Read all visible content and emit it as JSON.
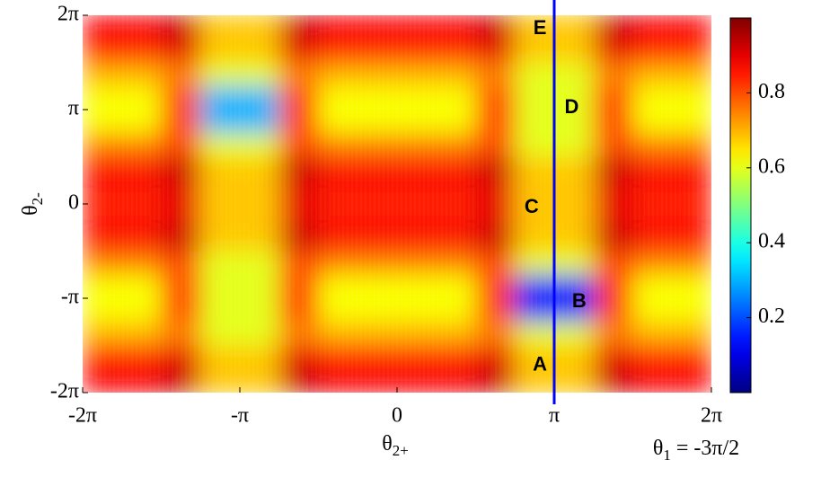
{
  "chart_data": {
    "type": "heatmap",
    "xlim": [
      -6.2832,
      6.2832
    ],
    "ylim": [
      -6.2832,
      6.2832
    ],
    "xticks": [
      {
        "value": -6.2832,
        "label": "-2π"
      },
      {
        "value": -3.1416,
        "label": "-π"
      },
      0,
      {
        "value": 3.1416,
        "label": "π"
      },
      {
        "value": 6.2832,
        "label": "2π"
      }
    ],
    "yticks": [
      {
        "value": -6.2832,
        "label": "-2π"
      },
      {
        "value": -3.1416,
        "label": "-π"
      },
      0,
      {
        "value": 3.1416,
        "label": "π"
      },
      {
        "value": 6.2832,
        "label": "2π"
      }
    ],
    "xlabel": {
      "symbol": "θ",
      "sub": "2+"
    },
    "ylabel": {
      "symbol": "θ",
      "sub": "2-"
    },
    "colormap": "jet",
    "zlim": [
      0,
      1
    ],
    "colorbar_ticks": [
      0.2,
      0.4,
      0.6,
      0.8
    ],
    "z": [
      [
        0.88,
        0.88,
        0.93,
        0.68,
        0.68,
        0.93,
        0.88,
        0.88,
        0.88,
        0.88,
        0.93,
        0.68,
        0.68,
        0.93,
        0.88,
        0.88
      ],
      [
        0.85,
        0.85,
        0.9,
        0.68,
        0.68,
        0.9,
        0.85,
        0.85,
        0.85,
        0.85,
        0.9,
        0.68,
        0.68,
        0.9,
        0.85,
        0.85
      ],
      [
        0.7,
        0.7,
        0.75,
        0.6,
        0.6,
        0.75,
        0.7,
        0.7,
        0.7,
        0.7,
        0.75,
        0.6,
        0.6,
        0.75,
        0.7,
        0.7
      ],
      [
        0.62,
        0.62,
        0.82,
        0.3,
        0.3,
        0.82,
        0.62,
        0.62,
        0.62,
        0.62,
        0.82,
        0.6,
        0.6,
        0.82,
        0.62,
        0.62
      ],
      [
        0.62,
        0.62,
        0.82,
        0.3,
        0.3,
        0.82,
        0.62,
        0.62,
        0.62,
        0.62,
        0.82,
        0.6,
        0.6,
        0.82,
        0.62,
        0.62
      ],
      [
        0.75,
        0.75,
        0.8,
        0.6,
        0.6,
        0.8,
        0.75,
        0.75,
        0.75,
        0.75,
        0.8,
        0.6,
        0.6,
        0.8,
        0.75,
        0.75
      ],
      [
        0.88,
        0.88,
        0.93,
        0.68,
        0.68,
        0.93,
        0.88,
        0.88,
        0.88,
        0.88,
        0.93,
        0.68,
        0.68,
        0.93,
        0.88,
        0.88
      ],
      [
        0.85,
        0.85,
        0.9,
        0.68,
        0.68,
        0.9,
        0.85,
        0.85,
        0.85,
        0.85,
        0.9,
        0.68,
        0.68,
        0.9,
        0.85,
        0.85
      ],
      [
        0.85,
        0.85,
        0.9,
        0.68,
        0.68,
        0.9,
        0.85,
        0.85,
        0.85,
        0.85,
        0.9,
        0.68,
        0.68,
        0.9,
        0.85,
        0.85
      ],
      [
        0.88,
        0.88,
        0.93,
        0.68,
        0.68,
        0.93,
        0.88,
        0.88,
        0.88,
        0.88,
        0.93,
        0.68,
        0.68,
        0.93,
        0.88,
        0.88
      ],
      [
        0.75,
        0.75,
        0.8,
        0.6,
        0.6,
        0.8,
        0.75,
        0.75,
        0.75,
        0.75,
        0.8,
        0.6,
        0.6,
        0.8,
        0.75,
        0.75
      ],
      [
        0.62,
        0.62,
        0.82,
        0.6,
        0.6,
        0.82,
        0.62,
        0.62,
        0.62,
        0.62,
        0.82,
        0.15,
        0.15,
        0.82,
        0.62,
        0.62
      ],
      [
        0.62,
        0.62,
        0.82,
        0.6,
        0.6,
        0.82,
        0.62,
        0.62,
        0.62,
        0.62,
        0.82,
        0.15,
        0.15,
        0.82,
        0.62,
        0.62
      ],
      [
        0.7,
        0.7,
        0.75,
        0.6,
        0.6,
        0.75,
        0.7,
        0.7,
        0.7,
        0.7,
        0.75,
        0.6,
        0.6,
        0.75,
        0.7,
        0.7
      ],
      [
        0.85,
        0.85,
        0.9,
        0.68,
        0.68,
        0.9,
        0.85,
        0.85,
        0.85,
        0.85,
        0.9,
        0.68,
        0.68,
        0.9,
        0.85,
        0.85
      ],
      [
        0.88,
        0.88,
        0.93,
        0.68,
        0.68,
        0.93,
        0.88,
        0.88,
        0.88,
        0.88,
        0.93,
        0.68,
        0.68,
        0.93,
        0.88,
        0.88
      ]
    ],
    "marker_line": {
      "x": 3.1416,
      "color": "#0000ff",
      "symbol": "θ",
      "sub": "1",
      "rest": " = -3π/2"
    },
    "annotations": [
      {
        "text": "A",
        "x": 2.856,
        "y": -5.37
      },
      {
        "text": "B",
        "x": 3.64,
        "y": -3.27
      },
      {
        "text": "C",
        "x": 2.69,
        "y": -0.12
      },
      {
        "text": "D",
        "x": 3.49,
        "y": 3.2
      },
      {
        "text": "E",
        "x": 2.856,
        "y": 5.83
      }
    ]
  }
}
